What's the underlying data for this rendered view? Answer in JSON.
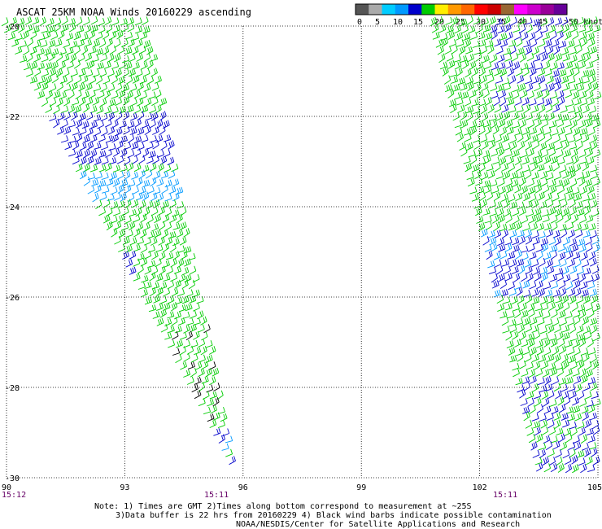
{
  "title": "ASCAT 25KM NOAA Winds 20160229 ascending",
  "legend": {
    "labels": [
      "0",
      "5",
      "10",
      "15",
      "20",
      "25",
      "30",
      "35",
      "40",
      "45",
      ">50 knots"
    ],
    "colors": [
      "#555555",
      "#aaaaaa",
      "#00ccff",
      "#0099ff",
      "#0000cc",
      "#00cc00",
      "#ffee00",
      "#ff9900",
      "#ff6600",
      "#ff0000",
      "#cc0000",
      "#996633",
      "#ff00ff",
      "#cc00cc",
      "#990099",
      "#660099"
    ]
  },
  "axes": {
    "lat_labels": [
      "-20",
      "-22",
      "-24",
      "-26",
      "-28",
      "-30"
    ],
    "lon_labels": [
      "90",
      "93",
      "96",
      "99",
      "102",
      "105"
    ],
    "time_labels": [
      "15:12",
      "15:11",
      "15:11"
    ]
  },
  "notes": {
    "line1": "Note: 1) Times are GMT 2)Times along bottom correspond to measurement at ~25S",
    "line2": "3)Data buffer is 22 hrs from 20160229 4) Black wind barbs indicate possible contamination",
    "line3": "NOAA/NESDIS/Center for Satellite Applications and Research"
  },
  "colors": {
    "barb_green": "#00cc00",
    "barb_blue": "#0000cc",
    "barb_cyan": "#0099ff",
    "barb_black": "#000000",
    "time": "#660066"
  }
}
